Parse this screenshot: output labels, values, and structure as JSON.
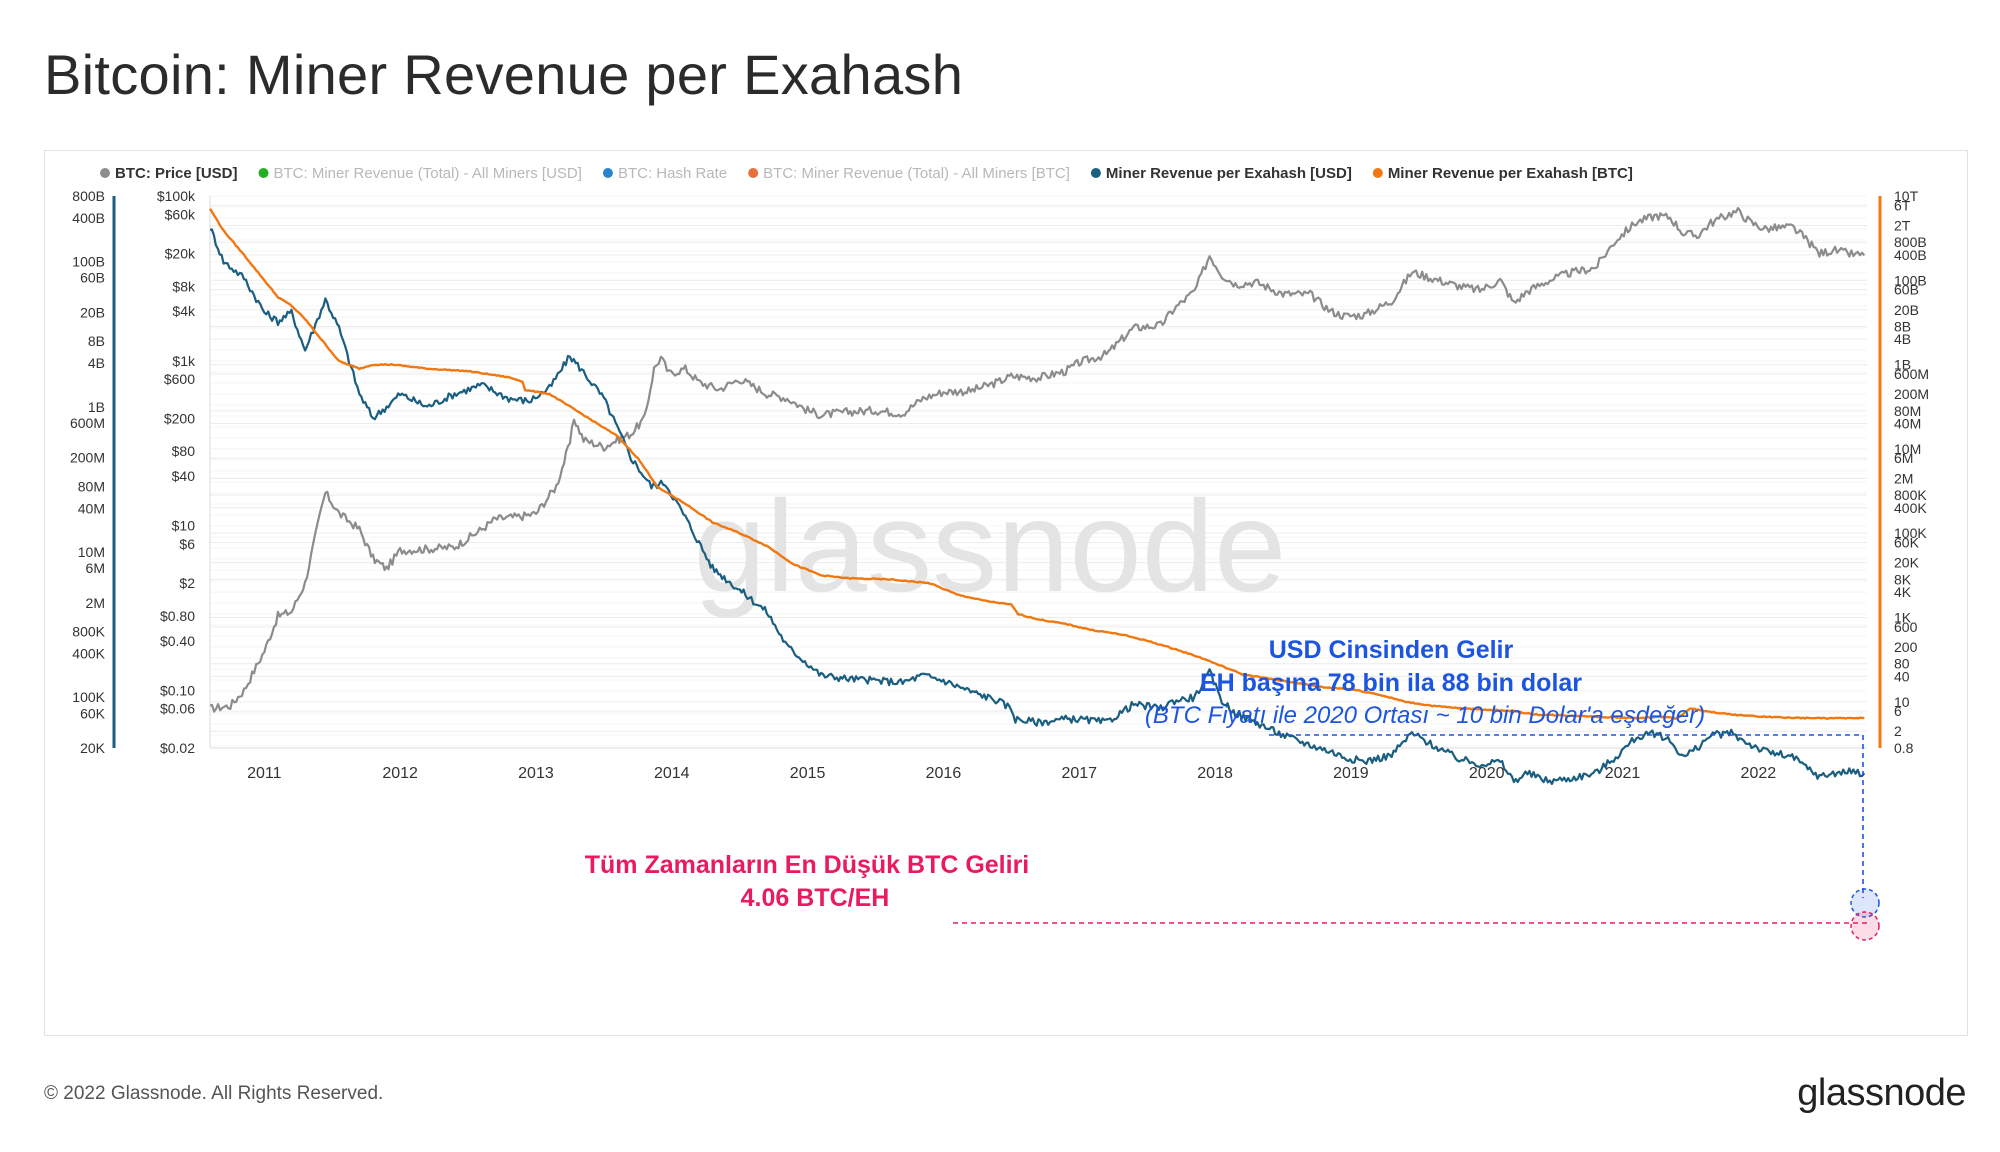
{
  "title": "Bitcoin: Miner Revenue per Exahash",
  "footer": {
    "copyright": "© 2022 Glassnode. All Rights Reserved.",
    "logo": "glassnode"
  },
  "watermark": "glassnode",
  "colors": {
    "price": "#8c8c8c",
    "usd_line": "#1a5e80",
    "btc_line": "#f07812",
    "usd_note": "#1b55e0",
    "btc_note": "#e81b5e",
    "axis_left": "#1a5e80",
    "axis_right": "#f07812"
  },
  "legend": [
    {
      "label": "BTC: Price [USD]",
      "color": "#8c8c8c",
      "active": true
    },
    {
      "label": "BTC: Miner Revenue (Total) - All Miners [USD]",
      "color": "#22b022",
      "active": false
    },
    {
      "label": "BTC: Hash Rate",
      "color": "#2884d0",
      "active": false
    },
    {
      "label": "BTC: Miner Revenue (Total) - All Miners [BTC]",
      "color": "#e8703a",
      "active": false
    },
    {
      "label": "Miner Revenue per Exahash [USD]",
      "color": "#1a5e80",
      "active": true
    },
    {
      "label": "Miner Revenue per Exahash [BTC]",
      "color": "#f07812",
      "active": true
    }
  ],
  "annotations": {
    "usd_line1": "USD Cinsinden Gelir",
    "usd_line2": "EH başına 78 bin ila 88 bin dolar",
    "usd_line3": "(BTC Fiyatı ile 2020 Ortası ~ 10 bin Dolar'a eşdeğer)",
    "btc_line1": "Tüm Zamanların En Düşük BTC Geliri",
    "btc_line2": "4.06 BTC/EH"
  },
  "chart_data": {
    "type": "line",
    "x_ticks": [
      "2011",
      "2012",
      "2013",
      "2014",
      "2015",
      "2016",
      "2017",
      "2018",
      "2019",
      "2020",
      "2021",
      "2022"
    ],
    "axis_far_left_ticks": [
      "800B",
      "400B",
      "100B",
      "60B",
      "20B",
      "8B",
      "4B",
      "1B",
      "600M",
      "200M",
      "80M",
      "40M",
      "10M",
      "6M",
      "2M",
      "800K",
      "400K",
      "100K",
      "60K",
      "20K"
    ],
    "axis_left_ticks": [
      "$100k",
      "$60k",
      "$20k",
      "$8k",
      "$4k",
      "$1k",
      "$600",
      "$200",
      "$80",
      "$40",
      "$10",
      "$6",
      "$2",
      "$0.80",
      "$0.40",
      "$0.10",
      "$0.06",
      "$0.02"
    ],
    "axis_right_ticks": [
      "10T",
      "6T",
      "2T",
      "800B",
      "400B",
      "100B",
      "60B",
      "20B",
      "8B",
      "4B",
      "1B",
      "600M",
      "200M",
      "80M",
      "40M",
      "10M",
      "6M",
      "2M",
      "800K",
      "400K",
      "100K",
      "60K",
      "20K",
      "8K",
      "4K",
      "1K",
      "600",
      "200",
      "80",
      "40",
      "10",
      "6",
      "2",
      "0.8"
    ],
    "x_range": [
      2010.6,
      2022.8
    ],
    "series": [
      {
        "name": "BTC: Price [USD]",
        "y_range": [
          0.02,
          100000
        ],
        "points": [
          [
            2010.6,
            0.06
          ],
          [
            2010.75,
            0.065
          ],
          [
            2010.85,
            0.1
          ],
          [
            2011.0,
            0.3
          ],
          [
            2011.1,
            0.8
          ],
          [
            2011.2,
            0.9
          ],
          [
            2011.3,
            2
          ],
          [
            2011.42,
            16
          ],
          [
            2011.45,
            25
          ],
          [
            2011.55,
            14
          ],
          [
            2011.7,
            9
          ],
          [
            2011.8,
            4
          ],
          [
            2011.9,
            3
          ],
          [
            2012.0,
            5
          ],
          [
            2012.2,
            5.2
          ],
          [
            2012.4,
            5.5
          ],
          [
            2012.5,
            7
          ],
          [
            2012.6,
            9
          ],
          [
            2012.7,
            12
          ],
          [
            2012.9,
            13
          ],
          [
            2013.0,
            14
          ],
          [
            2013.15,
            30
          ],
          [
            2013.25,
            100
          ],
          [
            2013.28,
            200
          ],
          [
            2013.35,
            110
          ],
          [
            2013.5,
            90
          ],
          [
            2013.6,
            110
          ],
          [
            2013.7,
            130
          ],
          [
            2013.8,
            200
          ],
          [
            2013.87,
            800
          ],
          [
            2013.92,
            1100
          ],
          [
            2013.98,
            700
          ],
          [
            2014.1,
            800
          ],
          [
            2014.2,
            550
          ],
          [
            2014.35,
            450
          ],
          [
            2014.5,
            600
          ],
          [
            2014.7,
            400
          ],
          [
            2014.85,
            350
          ],
          [
            2015.0,
            250
          ],
          [
            2015.1,
            220
          ],
          [
            2015.3,
            240
          ],
          [
            2015.5,
            250
          ],
          [
            2015.7,
            230
          ],
          [
            2015.85,
            350
          ],
          [
            2016.0,
            420
          ],
          [
            2016.2,
            430
          ],
          [
            2016.4,
            550
          ],
          [
            2016.5,
            650
          ],
          [
            2016.7,
            620
          ],
          [
            2016.9,
            750
          ],
          [
            2017.0,
            950
          ],
          [
            2017.2,
            1200
          ],
          [
            2017.4,
            2500
          ],
          [
            2017.6,
            2700
          ],
          [
            2017.7,
            4300
          ],
          [
            2017.85,
            7000
          ],
          [
            2017.96,
            19000
          ],
          [
            2018.05,
            11000
          ],
          [
            2018.15,
            8500
          ],
          [
            2018.3,
            9000
          ],
          [
            2018.5,
            6500
          ],
          [
            2018.7,
            6400
          ],
          [
            2018.85,
            4000
          ],
          [
            2018.95,
            3500
          ],
          [
            2019.1,
            3600
          ],
          [
            2019.3,
            5300
          ],
          [
            2019.45,
            12000
          ],
          [
            2019.6,
            10000
          ],
          [
            2019.8,
            8000
          ],
          [
            2019.95,
            7200
          ],
          [
            2020.1,
            9500
          ],
          [
            2020.2,
            5000
          ],
          [
            2020.3,
            7000
          ],
          [
            2020.45,
            9300
          ],
          [
            2020.6,
            11500
          ],
          [
            2020.8,
            13500
          ],
          [
            2020.95,
            29000
          ],
          [
            2021.1,
            48000
          ],
          [
            2021.25,
            58000
          ],
          [
            2021.35,
            55000
          ],
          [
            2021.45,
            35000
          ],
          [
            2021.55,
            33000
          ],
          [
            2021.65,
            47000
          ],
          [
            2021.8,
            62000
          ],
          [
            2021.85,
            65000
          ],
          [
            2021.95,
            47000
          ],
          [
            2022.05,
            40000
          ],
          [
            2022.25,
            42000
          ],
          [
            2022.35,
            30000
          ],
          [
            2022.45,
            20000
          ],
          [
            2022.55,
            22000
          ],
          [
            2022.7,
            19500
          ],
          [
            2022.78,
            19000
          ]
        ]
      },
      {
        "name": "Miner Revenue per Exahash [USD]",
        "y_range": [
          20000,
          800000000000
        ],
        "points": [
          [
            2010.6,
            300000000000
          ],
          [
            2010.7,
            100000000000
          ],
          [
            2010.85,
            60000000000
          ],
          [
            2011.0,
            20000000000
          ],
          [
            2011.1,
            15000000000
          ],
          [
            2011.2,
            20000000000
          ],
          [
            2011.3,
            6000000000
          ],
          [
            2011.45,
            30000000000
          ],
          [
            2011.55,
            12000000000
          ],
          [
            2011.7,
            1500000000
          ],
          [
            2011.8,
            700000000
          ],
          [
            2011.9,
            1000000000
          ],
          [
            2012.0,
            1500000000
          ],
          [
            2012.2,
            1000000000
          ],
          [
            2012.4,
            1500000000
          ],
          [
            2012.6,
            2000000000
          ],
          [
            2012.8,
            1300000000
          ],
          [
            2012.95,
            1200000000
          ],
          [
            2013.1,
            1800000000
          ],
          [
            2013.25,
            5000000000
          ],
          [
            2013.35,
            3000000000
          ],
          [
            2013.5,
            1300000000
          ],
          [
            2013.7,
            200000000
          ],
          [
            2013.85,
            80000000
          ],
          [
            2013.95,
            90000000
          ],
          [
            2014.1,
            30000000
          ],
          [
            2014.3,
            6000000
          ],
          [
            2014.5,
            3000000
          ],
          [
            2014.7,
            1500000
          ],
          [
            2014.85,
            500000
          ],
          [
            2014.95,
            350000
          ],
          [
            2015.1,
            200000
          ],
          [
            2015.3,
            180000
          ],
          [
            2015.5,
            170000
          ],
          [
            2015.7,
            160000
          ],
          [
            2015.85,
            200000
          ],
          [
            2016.0,
            170000
          ],
          [
            2016.2,
            120000
          ],
          [
            2016.4,
            90000
          ],
          [
            2016.5,
            70000
          ],
          [
            2016.53,
            50000
          ],
          [
            2016.7,
            45000
          ],
          [
            2016.9,
            50000
          ],
          [
            2017.0,
            50000
          ],
          [
            2017.2,
            45000
          ],
          [
            2017.4,
            80000
          ],
          [
            2017.6,
            70000
          ],
          [
            2017.7,
            90000
          ],
          [
            2017.85,
            100000
          ],
          [
            2017.96,
            220000
          ],
          [
            2018.05,
            90000
          ],
          [
            2018.15,
            60000
          ],
          [
            2018.3,
            45000
          ],
          [
            2018.5,
            30000
          ],
          [
            2018.7,
            22000
          ],
          [
            2018.85,
            18000
          ],
          [
            2018.95,
            15000
          ],
          [
            2019.1,
            13000
          ],
          [
            2019.3,
            16000
          ],
          [
            2019.45,
            32000
          ],
          [
            2019.6,
            22000
          ],
          [
            2019.8,
            14000
          ],
          [
            2019.95,
            12000
          ],
          [
            2020.1,
            13000
          ],
          [
            2020.2,
            7000
          ],
          [
            2020.3,
            9000
          ],
          [
            2020.45,
            7000
          ],
          [
            2020.6,
            7500
          ],
          [
            2020.8,
            9000
          ],
          [
            2020.95,
            15000
          ],
          [
            2021.1,
            28000
          ],
          [
            2021.25,
            32000
          ],
          [
            2021.35,
            25000
          ],
          [
            2021.45,
            15000
          ],
          [
            2021.55,
            20000
          ],
          [
            2021.65,
            30000
          ],
          [
            2021.8,
            32000
          ],
          [
            2021.85,
            28000
          ],
          [
            2021.95,
            22000
          ],
          [
            2022.05,
            18000
          ],
          [
            2022.25,
            15000
          ],
          [
            2022.35,
            11000
          ],
          [
            2022.45,
            8000
          ],
          [
            2022.55,
            9000
          ],
          [
            2022.7,
            9500
          ],
          [
            2022.78,
            9000
          ]
        ]
      },
      {
        "name": "Miner Revenue per Exahash [BTC]",
        "y_range": [
          0.8,
          10000000000000
        ],
        "points": [
          [
            2010.6,
            5000000000000
          ],
          [
            2010.7,
            1500000000000
          ],
          [
            2010.85,
            400000000000
          ],
          [
            2011.0,
            100000000000
          ],
          [
            2011.1,
            40000000000
          ],
          [
            2011.2,
            25000000000
          ],
          [
            2011.3,
            12000000000
          ],
          [
            2011.45,
            3000000000
          ],
          [
            2011.55,
            1200000000
          ],
          [
            2011.7,
            800000000
          ],
          [
            2011.8,
            1000000000
          ],
          [
            2011.95,
            1000000000
          ],
          [
            2012.2,
            800000000
          ],
          [
            2012.5,
            700000000
          ],
          [
            2012.8,
            500000000
          ],
          [
            2012.9,
            400000000
          ],
          [
            2012.92,
            250000000
          ],
          [
            2013.1,
            200000000
          ],
          [
            2013.3,
            80000000
          ],
          [
            2013.6,
            20000000
          ],
          [
            2013.75,
            6000000
          ],
          [
            2013.9,
            1200000
          ],
          [
            2014.1,
            500000
          ],
          [
            2014.3,
            180000
          ],
          [
            2014.5,
            100000
          ],
          [
            2014.7,
            50000
          ],
          [
            2014.9,
            18000
          ],
          [
            2015.1,
            10000
          ],
          [
            2015.3,
            8500
          ],
          [
            2015.6,
            8000
          ],
          [
            2015.9,
            6500
          ],
          [
            2016.1,
            3500
          ],
          [
            2016.3,
            2500
          ],
          [
            2016.5,
            2000
          ],
          [
            2016.55,
            1200
          ],
          [
            2016.7,
            900
          ],
          [
            2016.9,
            700
          ],
          [
            2017.1,
            500
          ],
          [
            2017.3,
            400
          ],
          [
            2017.5,
            280
          ],
          [
            2017.7,
            180
          ],
          [
            2017.9,
            110
          ],
          [
            2018.05,
            70
          ],
          [
            2018.2,
            45
          ],
          [
            2018.4,
            35
          ],
          [
            2018.6,
            28
          ],
          [
            2018.8,
            22
          ],
          [
            2019.0,
            20
          ],
          [
            2019.2,
            15
          ],
          [
            2019.4,
            10
          ],
          [
            2019.6,
            8
          ],
          [
            2019.8,
            7
          ],
          [
            2020.0,
            6.5
          ],
          [
            2020.2,
            6
          ],
          [
            2020.35,
            5
          ],
          [
            2020.5,
            4.8
          ],
          [
            2020.7,
            4.6
          ],
          [
            2020.9,
            4.3
          ],
          [
            2021.1,
            4.1
          ],
          [
            2021.3,
            4.4
          ],
          [
            2021.4,
            4
          ],
          [
            2021.5,
            7
          ],
          [
            2021.6,
            6
          ],
          [
            2021.8,
            5
          ],
          [
            2022.0,
            4.5
          ],
          [
            2022.2,
            4.2
          ],
          [
            2022.4,
            4.1
          ],
          [
            2022.6,
            4.06
          ],
          [
            2022.78,
            4.1
          ]
        ]
      }
    ]
  }
}
